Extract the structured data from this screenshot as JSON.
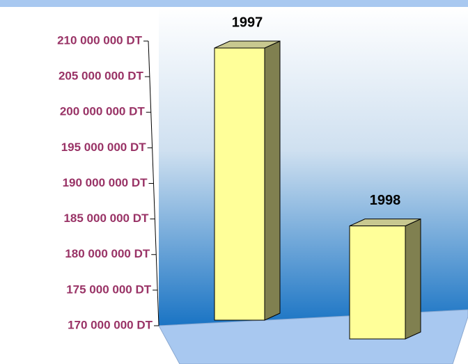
{
  "chart_data": {
    "type": "bar3d",
    "categories": [
      "1997",
      "1998"
    ],
    "values": [
      210000000,
      185000000
    ],
    "color": "#ffff99",
    "ylim": [
      170000000,
      210000000
    ],
    "yticks": [
      {
        "value": 170000000,
        "label": "170 000 000 DT"
      },
      {
        "value": 175000000,
        "label": "175 000 000 DT"
      },
      {
        "value": 180000000,
        "label": "180 000 000 DT"
      },
      {
        "value": 185000000,
        "label": "185 000 000 DT"
      },
      {
        "value": 190000000,
        "label": "190 000 000 DT"
      },
      {
        "value": 195000000,
        "label": "195 000 000 DT"
      },
      {
        "value": 200000000,
        "label": "200 000 000 DT"
      },
      {
        "value": 205000000,
        "label": "205 000 000 DT"
      },
      {
        "value": 210000000,
        "label": "210 000 000 DT"
      }
    ]
  }
}
